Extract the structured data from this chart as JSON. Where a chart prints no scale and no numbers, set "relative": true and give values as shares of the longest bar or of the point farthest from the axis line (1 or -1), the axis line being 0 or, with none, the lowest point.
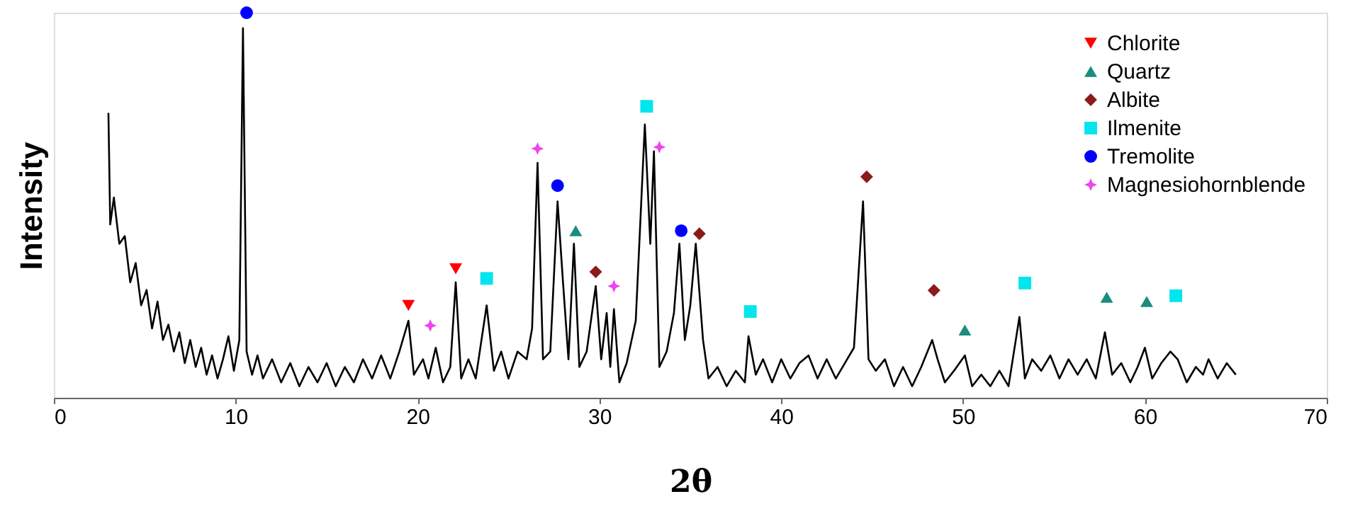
{
  "chart_data": {
    "type": "line",
    "relative": true,
    "xlabel": "2θ",
    "ylabel": "Intensity",
    "xlim": [
      0,
      70
    ],
    "xticks": [
      0,
      10,
      20,
      30,
      40,
      50,
      60,
      70
    ],
    "grid": false,
    "legend": "top right",
    "series": [
      {
        "color": "#000000",
        "x": [
          3.0,
          3.1,
          3.3,
          3.6,
          3.9,
          4.2,
          4.5,
          4.8,
          5.1,
          5.4,
          5.7,
          6.0,
          6.3,
          6.6,
          6.9,
          7.2,
          7.5,
          7.8,
          8.1,
          8.4,
          8.7,
          9.0,
          9.3,
          9.6,
          9.9,
          10.2,
          10.4,
          10.6,
          10.9,
          11.2,
          11.5,
          12.0,
          12.5,
          13.0,
          13.5,
          14.0,
          14.5,
          15.0,
          15.5,
          16.0,
          16.5,
          17.0,
          17.5,
          18.0,
          18.5,
          19.0,
          19.5,
          19.8,
          20.3,
          20.6,
          21.0,
          21.4,
          21.8,
          22.1,
          22.4,
          22.8,
          23.2,
          23.8,
          24.2,
          24.6,
          25.0,
          25.5,
          26.0,
          26.3,
          26.6,
          26.9,
          27.3,
          27.7,
          28.0,
          28.3,
          28.6,
          28.9,
          29.3,
          29.8,
          30.1,
          30.4,
          30.6,
          30.8,
          31.1,
          31.5,
          32.0,
          32.5,
          32.8,
          33.0,
          33.3,
          33.7,
          34.1,
          34.4,
          34.7,
          35.0,
          35.3,
          35.7,
          36.0,
          36.5,
          37.0,
          37.5,
          38.0,
          38.2,
          38.6,
          39.0,
          39.5,
          40.0,
          40.5,
          41.0,
          41.5,
          42.0,
          42.5,
          43.0,
          43.5,
          44.0,
          44.5,
          44.8,
          45.2,
          45.7,
          46.2,
          46.7,
          47.2,
          47.7,
          48.3,
          48.6,
          49.0,
          49.5,
          50.1,
          50.5,
          51.0,
          51.5,
          52.0,
          52.5,
          53.1,
          53.4,
          53.8,
          54.3,
          54.8,
          55.3,
          55.8,
          56.3,
          56.8,
          57.3,
          57.8,
          58.2,
          58.7,
          59.2,
          59.6,
          60.0,
          60.4,
          60.9,
          61.4,
          61.8,
          62.3,
          62.8,
          63.2,
          63.5,
          64.0,
          64.5,
          65.0
        ],
        "values": [
          0.74,
          0.45,
          0.52,
          0.4,
          0.42,
          0.3,
          0.35,
          0.24,
          0.28,
          0.18,
          0.25,
          0.15,
          0.19,
          0.12,
          0.17,
          0.09,
          0.15,
          0.08,
          0.13,
          0.06,
          0.11,
          0.05,
          0.1,
          0.16,
          0.07,
          0.15,
          0.96,
          0.12,
          0.06,
          0.11,
          0.05,
          0.1,
          0.04,
          0.09,
          0.03,
          0.08,
          0.04,
          0.09,
          0.03,
          0.08,
          0.04,
          0.1,
          0.05,
          0.11,
          0.05,
          0.12,
          0.2,
          0.06,
          0.1,
          0.05,
          0.13,
          0.04,
          0.08,
          0.3,
          0.05,
          0.1,
          0.05,
          0.24,
          0.07,
          0.12,
          0.05,
          0.12,
          0.1,
          0.18,
          0.61,
          0.1,
          0.12,
          0.51,
          0.3,
          0.1,
          0.4,
          0.08,
          0.12,
          0.29,
          0.1,
          0.22,
          0.08,
          0.23,
          0.04,
          0.09,
          0.2,
          0.71,
          0.4,
          0.64,
          0.08,
          0.12,
          0.22,
          0.4,
          0.15,
          0.24,
          0.4,
          0.15,
          0.05,
          0.08,
          0.03,
          0.07,
          0.04,
          0.16,
          0.06,
          0.1,
          0.04,
          0.1,
          0.05,
          0.09,
          0.11,
          0.05,
          0.1,
          0.05,
          0.09,
          0.13,
          0.51,
          0.1,
          0.07,
          0.1,
          0.03,
          0.08,
          0.03,
          0.08,
          0.15,
          0.1,
          0.04,
          0.07,
          0.11,
          0.03,
          0.06,
          0.03,
          0.07,
          0.03,
          0.21,
          0.05,
          0.1,
          0.07,
          0.11,
          0.05,
          0.1,
          0.06,
          0.1,
          0.05,
          0.17,
          0.06,
          0.09,
          0.04,
          0.08,
          0.13,
          0.05,
          0.09,
          0.12,
          0.1,
          0.04,
          0.08,
          0.06,
          0.1,
          0.05,
          0.09,
          0.06
        ]
      },
      {
        "type": "scatter",
        "name": "Chlorite",
        "color": "#ff0000",
        "marker": "triangle-down",
        "x": [
          19.5,
          22.1
        ],
        "values": [
          0.24,
          0.335
        ]
      },
      {
        "type": "scatter",
        "name": "Quartz",
        "color": "#1a8c80",
        "marker": "triangle",
        "x": [
          28.7,
          50.1,
          57.9,
          60.1
        ],
        "values": [
          0.434,
          0.176,
          0.261,
          0.25
        ]
      },
      {
        "type": "scatter",
        "name": "Albite",
        "color": "#8b1a1a",
        "marker": "diamond",
        "x": [
          29.8,
          35.5,
          44.7,
          48.4
        ],
        "values": [
          0.327,
          0.426,
          0.574,
          0.279
        ]
      },
      {
        "type": "scatter",
        "name": "Ilmenite",
        "color": "#00e5ee",
        "marker": "square",
        "x": [
          23.8,
          32.6,
          38.3,
          53.4,
          61.7
        ],
        "values": [
          0.31,
          0.757,
          0.224,
          0.298,
          0.265
        ]
      },
      {
        "type": "scatter",
        "name": "Tremolite",
        "color": "#0000ff",
        "marker": "circle",
        "x": [
          10.6,
          27.7,
          34.5
        ],
        "values": [
          1.0,
          0.551,
          0.434
        ]
      },
      {
        "type": "scatter",
        "name": "Magnesiohornblende",
        "color": "#ee44ee",
        "marker": "star",
        "x": [
          20.7,
          26.6,
          33.3,
          30.8
        ],
        "values": [
          0.1875,
          0.647,
          0.651,
          0.29
        ]
      }
    ]
  }
}
